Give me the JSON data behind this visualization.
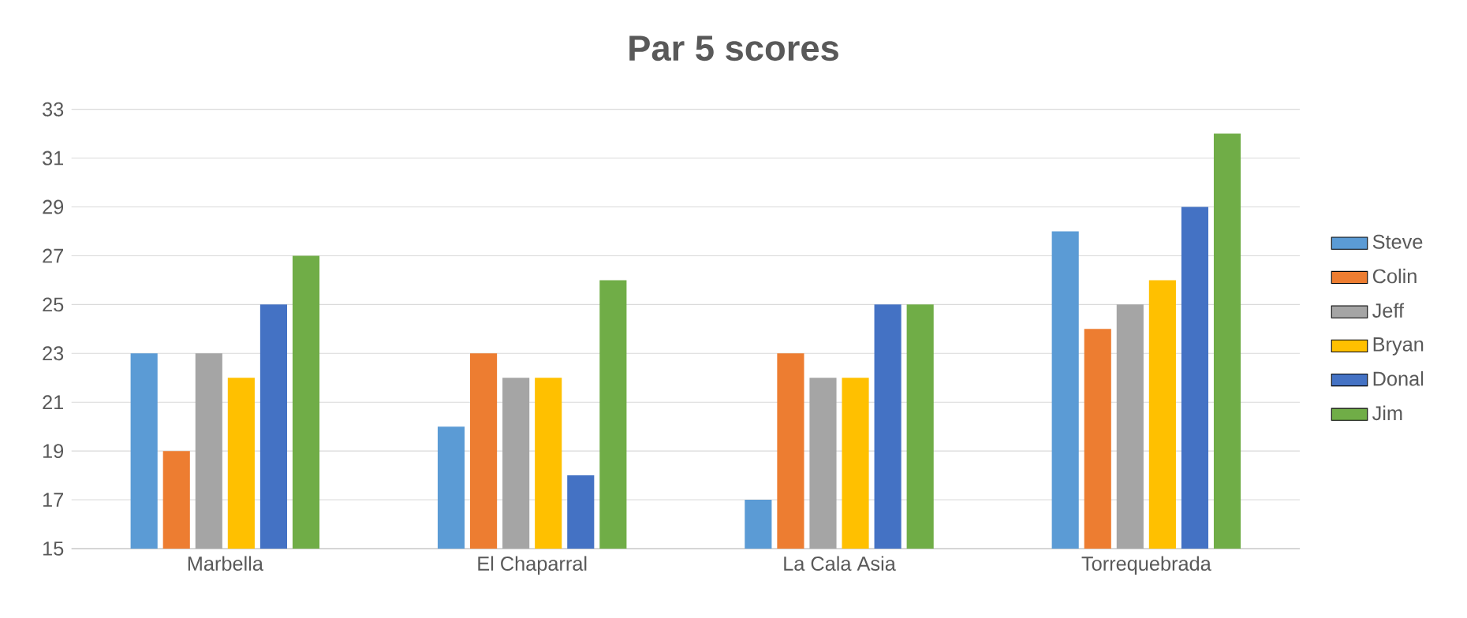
{
  "chart_data": {
    "type": "bar",
    "title": "Par 5 scores",
    "categories": [
      "Marbella",
      "El Chaparral",
      "La Cala Asia",
      "Torrequebrada"
    ],
    "series": [
      {
        "name": "Steve",
        "color": "#5b9bd5",
        "values": [
          23,
          20,
          17,
          28
        ]
      },
      {
        "name": "Colin",
        "color": "#ed7d31",
        "values": [
          19,
          23,
          23,
          24
        ]
      },
      {
        "name": "Jeff",
        "color": "#a5a5a5",
        "values": [
          23,
          22,
          22,
          25
        ]
      },
      {
        "name": "Bryan",
        "color": "#ffc000",
        "values": [
          22,
          22,
          22,
          26
        ]
      },
      {
        "name": "Donal",
        "color": "#4472c4",
        "values": [
          25,
          18,
          25,
          29
        ]
      },
      {
        "name": "Jim",
        "color": "#70ad47",
        "values": [
          27,
          26,
          25,
          32
        ]
      }
    ],
    "ylim": [
      15,
      33
    ],
    "yticks": [
      15,
      17,
      19,
      21,
      23,
      25,
      27,
      29,
      31,
      33
    ],
    "grid": "y",
    "legend": "right"
  }
}
